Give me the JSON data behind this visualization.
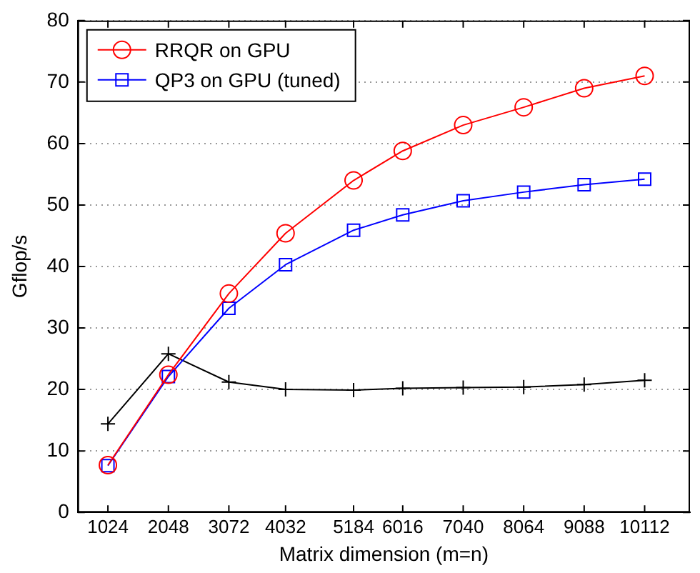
{
  "chart_data": {
    "type": "line",
    "xlabel": "Matrix dimension (m=n)",
    "ylabel": "Gflop/s",
    "x": [
      1024,
      2048,
      3072,
      4032,
      5184,
      6016,
      7040,
      8064,
      9088,
      10112
    ],
    "xlim": [
      512,
      10880
    ],
    "xticks": [
      1024,
      2048,
      3072,
      4032,
      5184,
      6016,
      7040,
      8064,
      9088,
      10112
    ],
    "ylim": [
      0,
      80
    ],
    "yticks": [
      0,
      10,
      20,
      30,
      40,
      50,
      60,
      70,
      80
    ],
    "grid": "y",
    "legend": "top left",
    "line_style": "solid",
    "series": [
      {
        "name": "RRQR on GPU",
        "color": "#ff0000",
        "marker": "circle",
        "values": [
          7.7,
          22.4,
          35.6,
          45.4,
          54.0,
          58.8,
          63.0,
          65.9,
          69.0,
          71.0
        ]
      },
      {
        "name": "QP3 on GPU (tuned)",
        "color": "#0000ff",
        "marker": "square",
        "values": [
          7.6,
          22.1,
          33.2,
          40.3,
          45.9,
          48.4,
          50.7,
          52.1,
          53.3,
          54.2
        ]
      },
      {
        "color": "#000000",
        "marker": "cross",
        "values": [
          14.4,
          25.8,
          21.2,
          20.0,
          19.9,
          20.2,
          20.3,
          20.4,
          20.8,
          21.5
        ]
      }
    ]
  }
}
